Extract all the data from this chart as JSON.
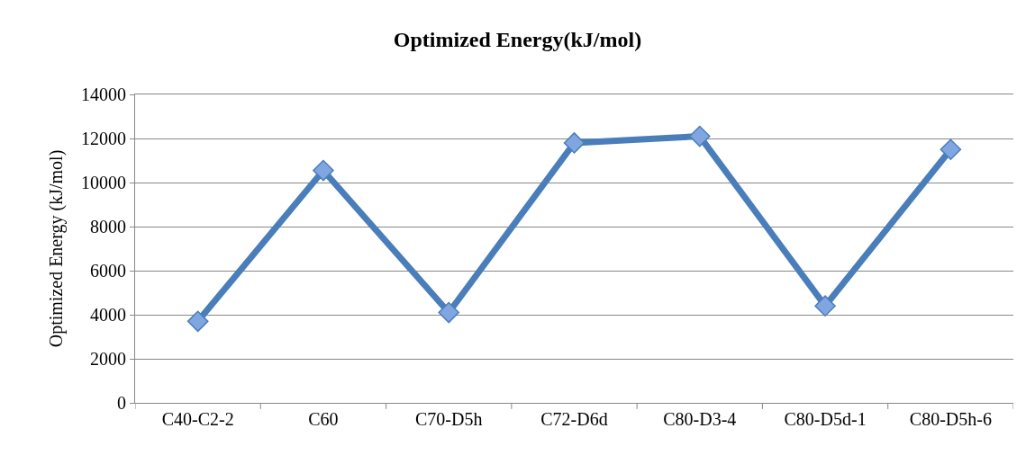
{
  "chart_data": {
    "type": "line",
    "title": "Optimized Energy(kJ/mol)",
    "ylabel": "Optimized Energy (kJ/mol)",
    "categories": [
      "C40-C2-2",
      "C60",
      "C70-D5h",
      "C72-D6d",
      "C80-D3-4",
      "C80-D5d-1",
      "C80-D5h-6"
    ],
    "series": [
      {
        "color": "#4a7ebb",
        "values": [
          3700,
          10550,
          4100,
          11800,
          12100,
          4400,
          11500
        ]
      }
    ],
    "ylim": [
      0,
      14000
    ],
    "yticks": [
      0,
      2000,
      4000,
      6000,
      8000,
      10000,
      12000,
      14000
    ],
    "grid": "y",
    "marker": "diamond",
    "line_style": "solid"
  }
}
